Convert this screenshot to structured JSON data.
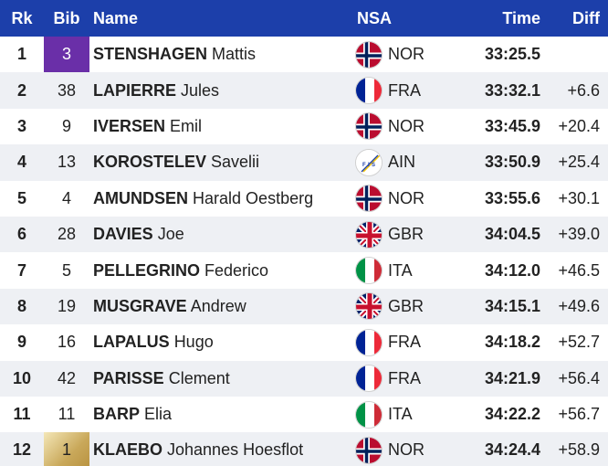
{
  "header": {
    "rank": "Rk",
    "bib": "Bib",
    "name": "Name",
    "nsa": "NSA",
    "time": "Time",
    "diff": "Diff"
  },
  "colors": {
    "header_bg": "#1c3faa",
    "bib_purple": "#6a2fa8",
    "bib_gold": "#c9a85a",
    "alt_row": "#eef0f4"
  },
  "rows": [
    {
      "rank": "1",
      "bib": "3",
      "bib_style": "purple",
      "surname": "STENSHAGEN",
      "firstname": "Mattis",
      "flag": "norway-flag-icon",
      "nsa": "NOR",
      "time": "33:25.5",
      "diff": ""
    },
    {
      "rank": "2",
      "bib": "38",
      "bib_style": "",
      "surname": "LAPIERRE",
      "firstname": "Jules",
      "flag": "france-flag-icon",
      "nsa": "FRA",
      "time": "33:32.1",
      "diff": "+6.6"
    },
    {
      "rank": "3",
      "bib": "9",
      "bib_style": "",
      "surname": "IVERSEN",
      "firstname": "Emil",
      "flag": "norway-flag-icon",
      "nsa": "NOR",
      "time": "33:45.9",
      "diff": "+20.4"
    },
    {
      "rank": "4",
      "bib": "13",
      "bib_style": "",
      "surname": "KOROSTELEV",
      "firstname": "Savelii",
      "flag": "fis-flag-icon",
      "nsa": "AIN",
      "time": "33:50.9",
      "diff": "+25.4"
    },
    {
      "rank": "5",
      "bib": "4",
      "bib_style": "",
      "surname": "AMUNDSEN",
      "firstname": "Harald Oestberg",
      "flag": "norway-flag-icon",
      "nsa": "NOR",
      "time": "33:55.6",
      "diff": "+30.1"
    },
    {
      "rank": "6",
      "bib": "28",
      "bib_style": "",
      "surname": "DAVIES",
      "firstname": "Joe",
      "flag": "uk-flag-icon",
      "nsa": "GBR",
      "time": "34:04.5",
      "diff": "+39.0"
    },
    {
      "rank": "7",
      "bib": "5",
      "bib_style": "",
      "surname": "PELLEGRINO",
      "firstname": "Federico",
      "flag": "italy-flag-icon",
      "nsa": "ITA",
      "time": "34:12.0",
      "diff": "+46.5"
    },
    {
      "rank": "8",
      "bib": "19",
      "bib_style": "",
      "surname": "MUSGRAVE",
      "firstname": "Andrew",
      "flag": "uk-flag-icon",
      "nsa": "GBR",
      "time": "34:15.1",
      "diff": "+49.6"
    },
    {
      "rank": "9",
      "bib": "16",
      "bib_style": "",
      "surname": "LAPALUS",
      "firstname": "Hugo",
      "flag": "france-flag-icon",
      "nsa": "FRA",
      "time": "34:18.2",
      "diff": "+52.7"
    },
    {
      "rank": "10",
      "bib": "42",
      "bib_style": "",
      "surname": "PARISSE",
      "firstname": "Clement",
      "flag": "france-flag-icon",
      "nsa": "FRA",
      "time": "34:21.9",
      "diff": "+56.4"
    },
    {
      "rank": "11",
      "bib": "11",
      "bib_style": "",
      "surname": "BARP",
      "firstname": "Elia",
      "flag": "italy-flag-icon",
      "nsa": "ITA",
      "time": "34:22.2",
      "diff": "+56.7"
    },
    {
      "rank": "12",
      "bib": "1",
      "bib_style": "gold",
      "surname": "KLAEBO",
      "firstname": "Johannes Hoesflot",
      "flag": "norway-flag-icon",
      "nsa": "NOR",
      "time": "34:24.4",
      "diff": "+58.9"
    }
  ]
}
